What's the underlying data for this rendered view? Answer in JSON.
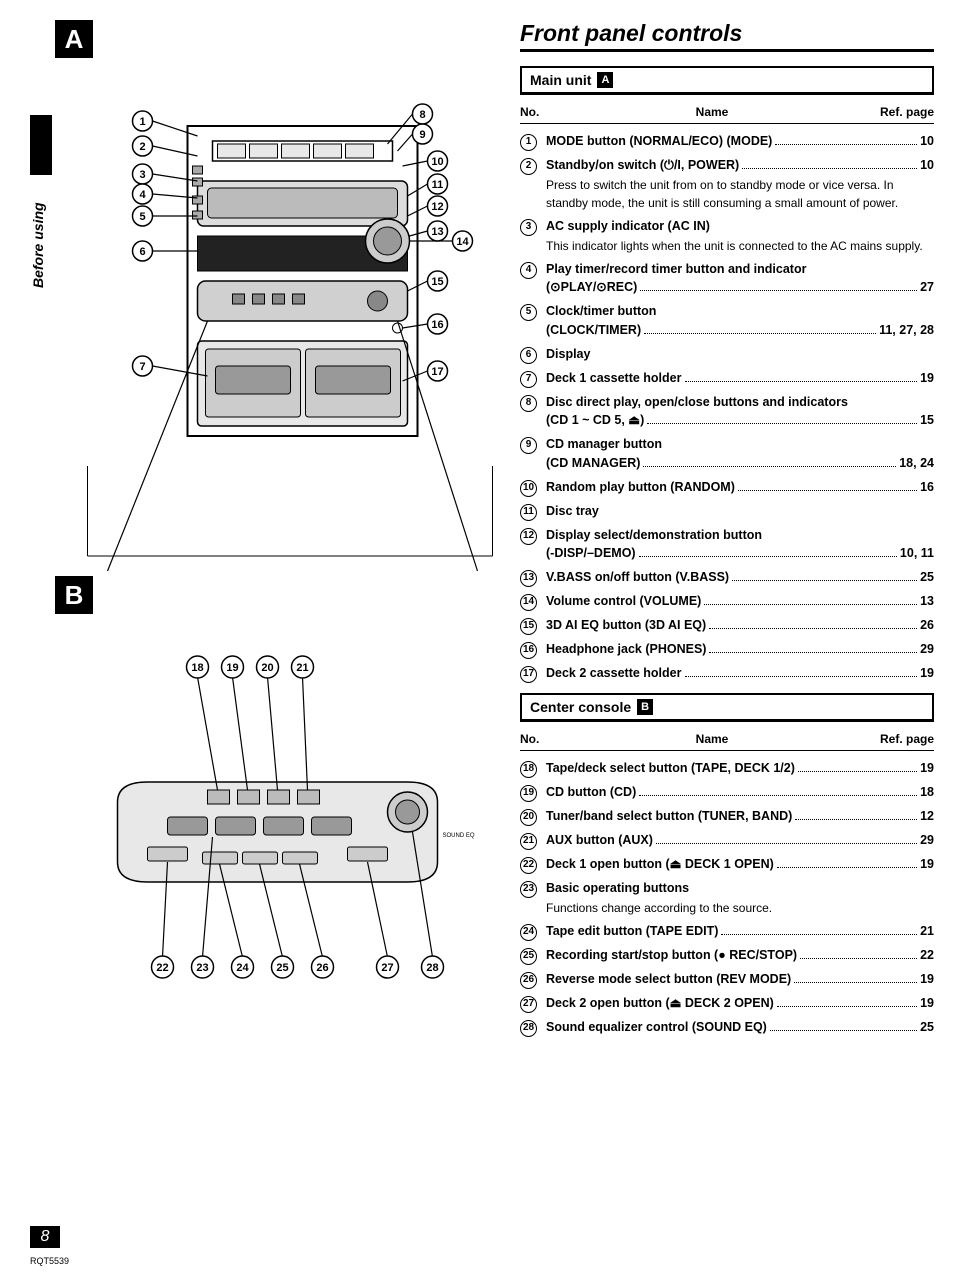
{
  "page_title": "Front panel controls",
  "side_tab": "Before using",
  "section_a_label": "A",
  "section_b_label": "B",
  "page_number": "8",
  "doc_code": "RQT5539",
  "col_headers": {
    "no": "No.",
    "name": "Name",
    "ref": "Ref. page"
  },
  "main_unit": {
    "header": "Main unit",
    "badge": "A",
    "items": [
      {
        "n": "1",
        "label": "MODE button (NORMAL/ECO) (MODE)",
        "page": "10"
      },
      {
        "n": "2",
        "label": "Standby/on switch (⏻/I, POWER)",
        "page": "10",
        "note": "Press to switch the unit from on to standby mode or vice versa. In standby mode, the unit is still consuming a small amount of power."
      },
      {
        "n": "3",
        "label": "AC supply indicator (AC IN)",
        "note": "This indicator lights when the unit is connected to the AC mains supply."
      },
      {
        "n": "4",
        "label": "Play timer/record timer button and indicator",
        "sub": "(⊙PLAY/⊙REC)",
        "page": "27"
      },
      {
        "n": "5",
        "label": "Clock/timer button",
        "sub": "(CLOCK/TIMER)",
        "page": "11, 27, 28"
      },
      {
        "n": "6",
        "label": "Display"
      },
      {
        "n": "7",
        "label": "Deck 1 cassette holder",
        "page": "19"
      },
      {
        "n": "8",
        "label": "Disc direct play, open/close buttons and indicators",
        "sub": "(CD 1 ~ CD 5, ⏏)",
        "page": "15"
      },
      {
        "n": "9",
        "label": "CD manager button",
        "sub": "(CD MANAGER)",
        "page": "18, 24"
      },
      {
        "n": "10",
        "label": "Random play button (RANDOM)",
        "page": "16"
      },
      {
        "n": "11",
        "label": "Disc tray"
      },
      {
        "n": "12",
        "label": "Display select/demonstration button",
        "sub": "(-DISP/–DEMO)",
        "page": "10, 11"
      },
      {
        "n": "13",
        "label": "V.BASS on/off button (V.BASS)",
        "page": "25"
      },
      {
        "n": "14",
        "label": "Volume control (VOLUME)",
        "page": "13"
      },
      {
        "n": "15",
        "label": "3D AI EQ button (3D AI EQ)",
        "page": "26"
      },
      {
        "n": "16",
        "label": "Headphone jack (PHONES)",
        "page": "29"
      },
      {
        "n": "17",
        "label": "Deck 2 cassette holder",
        "page": "19"
      }
    ]
  },
  "center_console": {
    "header": "Center console",
    "badge": "B",
    "items": [
      {
        "n": "18",
        "label": "Tape/deck select button (TAPE, DECK 1/2)",
        "page": "19"
      },
      {
        "n": "19",
        "label": "CD button (CD)",
        "page": "18"
      },
      {
        "n": "20",
        "label": "Tuner/band select button (TUNER, BAND)",
        "page": "12"
      },
      {
        "n": "21",
        "label": "AUX button (AUX)",
        "page": "29"
      },
      {
        "n": "22",
        "label": "Deck 1 open button (⏏ DECK 1 OPEN)",
        "page": "19"
      },
      {
        "n": "23",
        "label": "Basic operating buttons",
        "note": "Functions change according to the source."
      },
      {
        "n": "24",
        "label": "Tape edit button (TAPE EDIT)",
        "page": "21"
      },
      {
        "n": "25",
        "label": "Recording start/stop button (● REC/STOP)",
        "page": "22"
      },
      {
        "n": "26",
        "label": "Reverse mode select button (REV MODE)",
        "page": "19"
      },
      {
        "n": "27",
        "label": "Deck 2 open button (⏏ DECK 2 OPEN)",
        "page": "19"
      },
      {
        "n": "28",
        "label": "Sound equalizer control (SOUND EQ)",
        "page": "25"
      }
    ]
  },
  "diagram_a": {
    "left_callouts": [
      1,
      2,
      3,
      4,
      5,
      6,
      7
    ],
    "right_callouts": [
      8,
      9,
      10,
      11,
      12,
      13,
      14,
      15,
      16,
      17
    ]
  },
  "diagram_b": {
    "top_callouts": [
      18,
      19,
      20,
      21
    ],
    "bottom_callouts": [
      22,
      23,
      24,
      25,
      26,
      27,
      28
    ]
  },
  "colors": {
    "black": "#000000",
    "white": "#ffffff"
  }
}
